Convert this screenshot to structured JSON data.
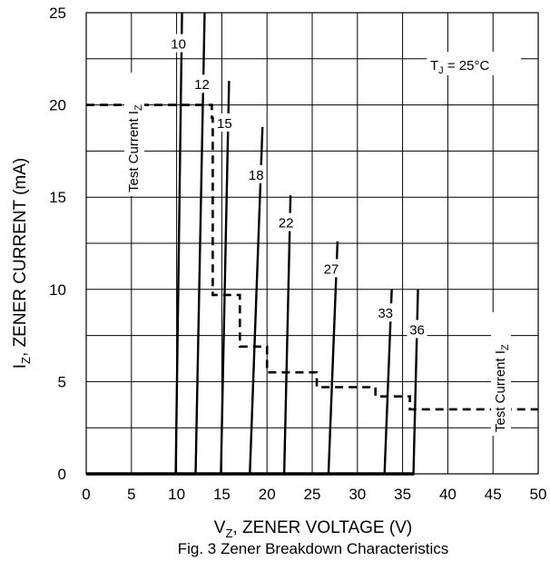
{
  "chart_data": {
    "type": "line",
    "title": "Fig. 3 Zener Breakdown Characteristics",
    "xlabel": {
      "main": "V",
      "sub": "Z",
      "rest": ", ZENER VOLTAGE (V)"
    },
    "ylabel": {
      "main": "I",
      "sub": "Z",
      "rest": ", ZENER CURRENT (mA)"
    },
    "xlim": [
      0,
      50
    ],
    "ylim": [
      0,
      25
    ],
    "xticks": [
      0,
      5,
      10,
      15,
      20,
      25,
      30,
      35,
      40,
      45,
      50
    ],
    "yticks": [
      0,
      5,
      10,
      15,
      20,
      25
    ],
    "grid": true,
    "annotation": {
      "main": "T",
      "sub": "J",
      "rest": " = 25°C"
    },
    "test_current_label": {
      "main": "Test Current I",
      "sub": "Z"
    },
    "baseline": {
      "x": [
        0,
        36.3
      ],
      "y": [
        0,
        0
      ]
    },
    "series": [
      {
        "name": "10",
        "x": [
          9.9,
          10.6
        ],
        "y": [
          0,
          25
        ]
      },
      {
        "name": "12",
        "x": [
          12.1,
          13.1
        ],
        "y": [
          0,
          25
        ]
      },
      {
        "name": "15",
        "x": [
          14.9,
          15.8
        ],
        "y": [
          0,
          21.3
        ]
      },
      {
        "name": "18",
        "x": [
          18.1,
          19.5
        ],
        "y": [
          0,
          18.8
        ]
      },
      {
        "name": "22",
        "x": [
          21.9,
          22.6
        ],
        "y": [
          0,
          15.1
        ]
      },
      {
        "name": "27",
        "x": [
          26.8,
          27.8
        ],
        "y": [
          0,
          12.6
        ]
      },
      {
        "name": "33",
        "x": [
          33.0,
          33.8
        ],
        "y": [
          0,
          10.0
        ]
      },
      {
        "name": "36",
        "x": [
          36.2,
          36.7
        ],
        "y": [
          0,
          10.0
        ]
      }
    ],
    "test_current": {
      "x": [
        0,
        13.9,
        13.9,
        14.0,
        14.0,
        17.0,
        17.0,
        20.0,
        20.0,
        25.5,
        25.5,
        32.0,
        32.0,
        35.8,
        35.8,
        50
      ],
      "y": [
        20,
        20,
        19.3,
        19.3,
        9.7,
        9.7,
        6.9,
        6.9,
        5.5,
        5.5,
        4.7,
        4.7,
        4.2,
        4.2,
        3.5,
        3.5
      ]
    },
    "curve_label_pos": [
      {
        "name": "10",
        "x": 10.2,
        "y": 23.3
      },
      {
        "name": "12",
        "x": 12.8,
        "y": 21.1
      },
      {
        "name": "15",
        "x": 15.3,
        "y": 19.0
      },
      {
        "name": "18",
        "x": 18.8,
        "y": 16.2
      },
      {
        "name": "22",
        "x": 22.1,
        "y": 13.6
      },
      {
        "name": "27",
        "x": 27.1,
        "y": 11.1
      },
      {
        "name": "33",
        "x": 33.1,
        "y": 8.7
      },
      {
        "name": "36",
        "x": 36.6,
        "y": 7.8
      }
    ]
  }
}
